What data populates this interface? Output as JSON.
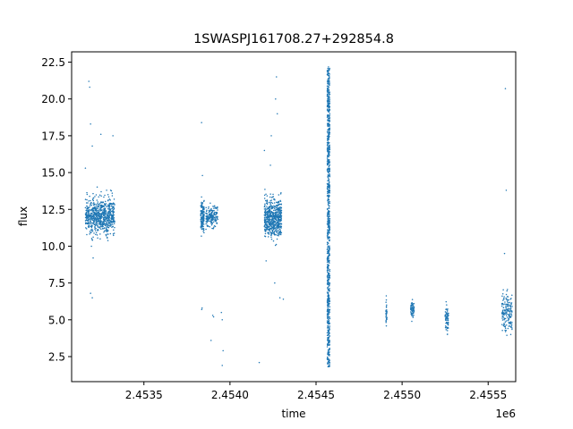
{
  "chart_data": {
    "type": "scatter",
    "title": "1SWASPJ161708.27+292854.8",
    "xlabel": "time",
    "ylabel": "flux",
    "x_offset_label": "1e6",
    "xlim": [
      2453080,
      2455660
    ],
    "ylim": [
      0.8,
      23.2
    ],
    "xticks": [
      2453500,
      2454000,
      2454500,
      2455000,
      2455500
    ],
    "xtick_labels": [
      "2.4535",
      "2.4540",
      "2.4545",
      "2.4550",
      "2.4555"
    ],
    "yticks": [
      2.5,
      5.0,
      7.5,
      10.0,
      12.5,
      15.0,
      17.5,
      20.0,
      22.5
    ],
    "ytick_labels": [
      "2.5",
      "5.0",
      "7.5",
      "10.0",
      "12.5",
      "15.0",
      "17.5",
      "20.0",
      "22.5"
    ],
    "grid": false,
    "marker_color": "#1f77b4",
    "series": [
      {
        "name": "",
        "clusters": [
          {
            "x_range": [
              2453160,
              2453330
            ],
            "y_center": 12.0,
            "y_spread": 1.1,
            "n": 700,
            "outliers": [
              [
                2453180,
                21.2
              ],
              [
                2453185,
                20.8
              ],
              [
                2453190,
                18.3
              ],
              [
                2453200,
                16.8
              ],
              [
                2453320,
                17.5
              ],
              [
                2453195,
                10.0
              ],
              [
                2453205,
                9.2
              ],
              [
                2453190,
                6.8
              ],
              [
                2453200,
                6.5
              ],
              [
                2453250,
                17.6
              ],
              [
                2453160,
                15.3
              ]
            ]
          },
          {
            "x_range": [
              2453830,
              2453850
            ],
            "y_center": 12.0,
            "y_spread": 0.9,
            "n": 140,
            "outliers": [
              [
                2453835,
                18.4
              ],
              [
                2453840,
                14.8
              ],
              [
                2453838,
                5.8
              ],
              [
                2453836,
                5.7
              ]
            ]
          },
          {
            "x_range": [
              2453860,
              2453930
            ],
            "y_center": 12.0,
            "y_spread": 0.6,
            "n": 180,
            "outliers": [
              [
                2453900,
                5.3
              ],
              [
                2453905,
                5.2
              ],
              [
                2453890,
                3.6
              ],
              [
                2453950,
                5.5
              ],
              [
                2453955,
                5.0
              ],
              [
                2453960,
                2.9
              ],
              [
                2453955,
                1.9
              ]
            ]
          },
          {
            "x_range": [
              2454200,
              2454300
            ],
            "y_center": 11.9,
            "y_spread": 1.2,
            "n": 600,
            "outliers": [
              [
                2454270,
                21.5
              ],
              [
                2454265,
                20.0
              ],
              [
                2454275,
                19.0
              ],
              [
                2454240,
                17.5
              ],
              [
                2454200,
                16.5
              ],
              [
                2454235,
                15.5
              ],
              [
                2454210,
                9.0
              ],
              [
                2454260,
                7.5
              ],
              [
                2454290,
                6.5
              ],
              [
                2454310,
                6.4
              ],
              [
                2454170,
                2.1
              ]
            ]
          },
          {
            "x_range": [
              2454565,
              2454580
            ],
            "y_center": 11.5,
            "y_spread": 5.5,
            "n": 900,
            "y_min": 1.8,
            "y_max": 22.2
          },
          {
            "x_range": [
              2454906,
              2454912
            ],
            "y_center": 5.4,
            "y_spread": 0.7,
            "n": 30,
            "y_min": 4.0,
            "y_max": 6.9
          },
          {
            "x_range": [
              2455050,
              2455070
            ],
            "y_center": 5.7,
            "y_spread": 0.5,
            "n": 60,
            "y_min": 4.9,
            "y_max": 6.5
          },
          {
            "x_range": [
              2455250,
              2455270
            ],
            "y_center": 5.2,
            "y_spread": 0.9,
            "n": 70,
            "y_min": 3.8,
            "y_max": 6.8
          },
          {
            "x_range": [
              2455580,
              2455640
            ],
            "y_center": 5.5,
            "y_spread": 1.2,
            "n": 160,
            "y_min": 3.8,
            "y_max": 10.8,
            "outliers": [
              [
                2455600,
                20.7
              ],
              [
                2455605,
                13.8
              ],
              [
                2455595,
                9.5
              ]
            ]
          }
        ]
      }
    ]
  }
}
